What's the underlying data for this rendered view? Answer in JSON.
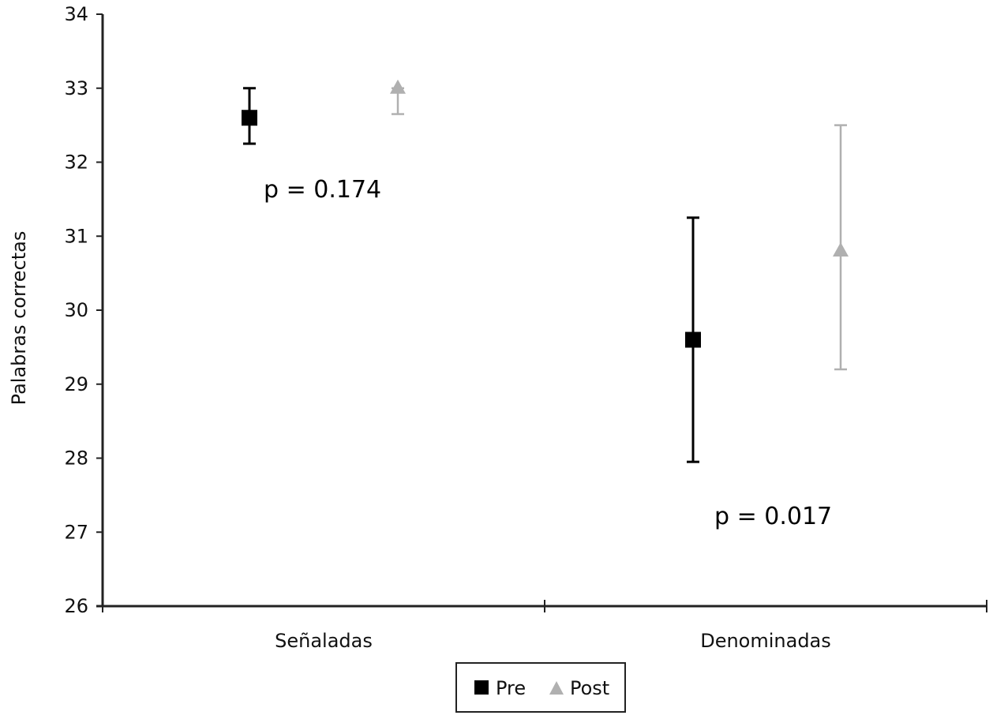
{
  "chart_data": {
    "type": "scatter",
    "ylabel": "Palabras correctas",
    "xlabel": "",
    "ylim": [
      26,
      34
    ],
    "yticks": [
      26,
      27,
      28,
      29,
      30,
      31,
      32,
      33,
      34
    ],
    "categories": [
      "Señaladas",
      "Denominadas"
    ],
    "grid": false,
    "legend_position": "bottom-center",
    "error_bars": true,
    "series": [
      {
        "name": "Pre",
        "marker": "square",
        "color": "#000000",
        "values": [
          32.6,
          29.6
        ],
        "error_low": [
          32.25,
          27.95
        ],
        "error_high": [
          33.0,
          31.25
        ]
      },
      {
        "name": "Post",
        "marker": "triangle",
        "color": "#b0b0b0",
        "values": [
          33.0,
          30.8
        ],
        "error_low": [
          32.65,
          29.2
        ],
        "error_high": [
          33.0,
          32.5
        ]
      }
    ],
    "annotations": [
      {
        "text": "p = 0.174",
        "category": "Señaladas"
      },
      {
        "text": "p = 0.017",
        "category": "Denominadas"
      }
    ]
  }
}
